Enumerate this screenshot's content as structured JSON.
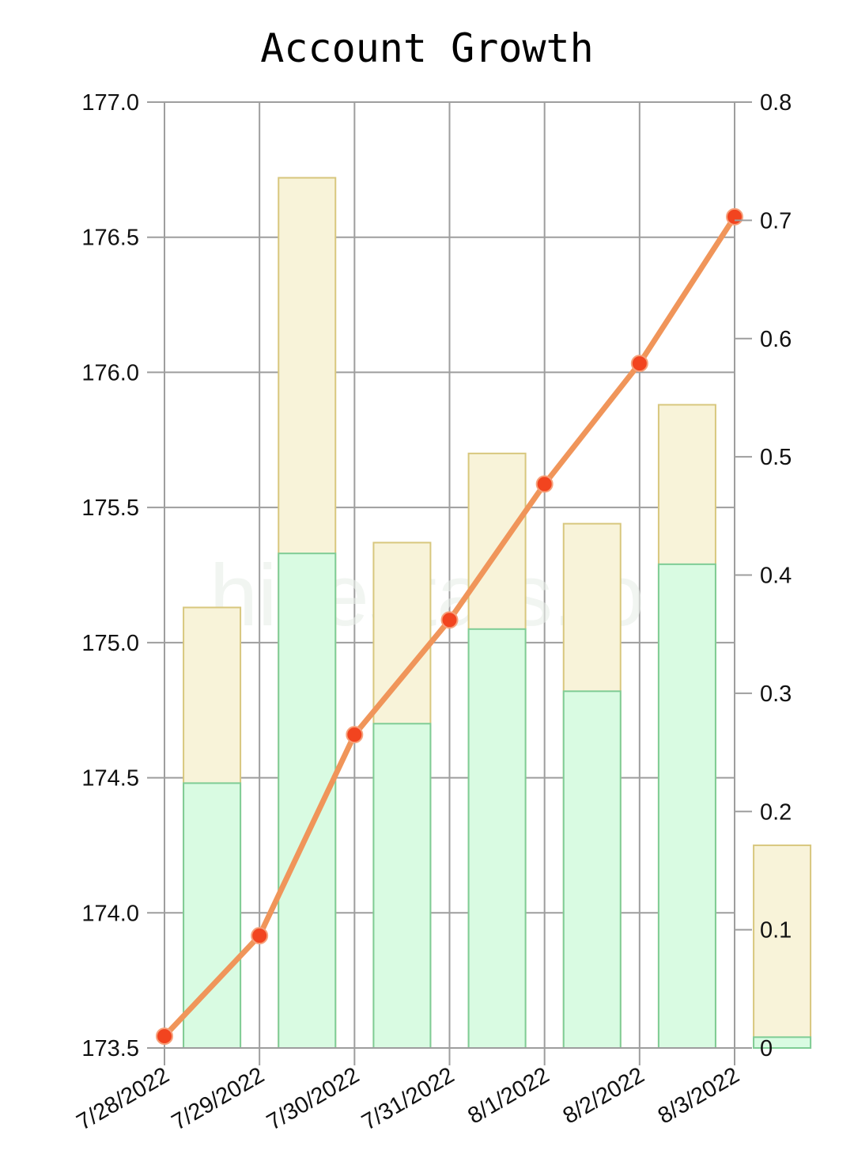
{
  "chart_data": {
    "type": "bar",
    "title": "Account Growth",
    "watermark": "hivestats.io",
    "categories": [
      "7/28/2022",
      "7/29/2022",
      "7/30/2022",
      "7/31/2022",
      "8/1/2022",
      "8/2/2022",
      "8/3/2022"
    ],
    "bar_series": [
      {
        "values_base": [
          174.48,
          175.33,
          174.7,
          175.05,
          174.82,
          175.29,
          173.54
        ]
      },
      {
        "values_total": [
          175.13,
          176.72,
          175.37,
          175.7,
          175.44,
          175.88,
          174.25
        ]
      }
    ],
    "line_series": {
      "values": [
        0.01,
        0.095,
        0.265,
        0.362,
        0.477,
        0.579,
        0.703
      ],
      "axis": "right"
    },
    "y_left": {
      "lim": [
        173.5,
        177.0
      ],
      "ticks": [
        "173.5",
        "174.0",
        "174.5",
        "175.0",
        "175.5",
        "176.0",
        "176.5",
        "177.0"
      ]
    },
    "y_right": {
      "lim": [
        0,
        0.8
      ],
      "ticks": [
        "0",
        "0.1",
        "0.2",
        "0.3",
        "0.4",
        "0.5",
        "0.6",
        "0.7",
        "0.8"
      ]
    },
    "grid": true,
    "colors": {
      "bar_total_fill": "#f8f3d9",
      "bar_base_fill": "#d9fbe2",
      "line": "#f0955a",
      "point": "#f2441f"
    }
  }
}
